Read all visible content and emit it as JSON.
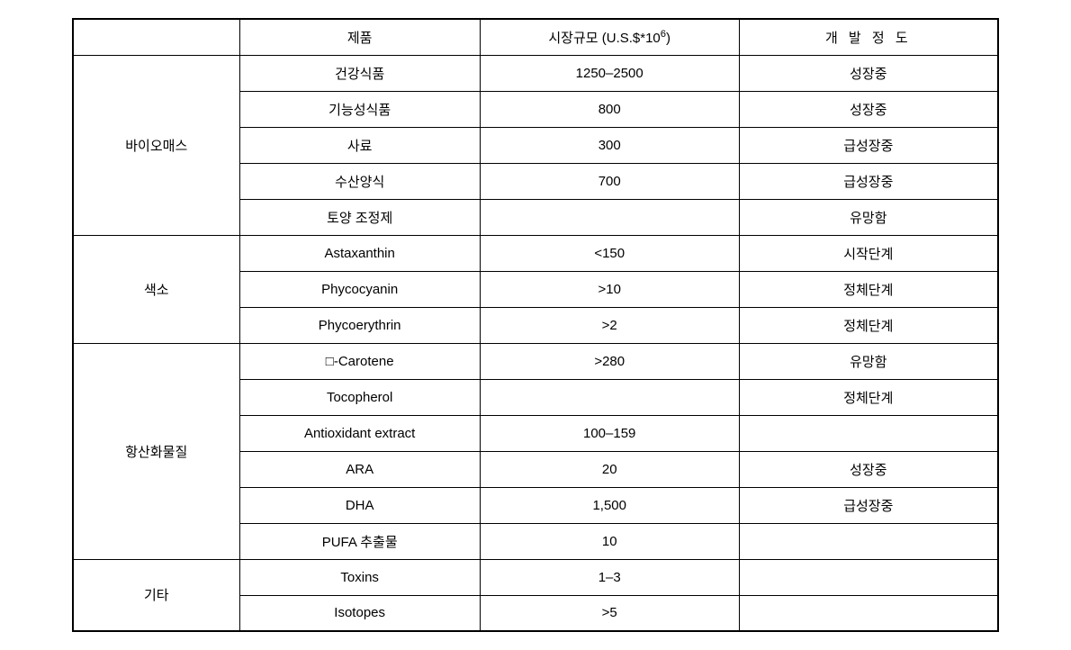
{
  "headers": {
    "category": "",
    "product": "제품",
    "market_prefix": "시장규모 (U.S.$*10",
    "market_suffix": ")",
    "market_exp": "6",
    "development": "개 발 정 도"
  },
  "sections": [
    {
      "category": "바이오매스",
      "rows": [
        {
          "product": "건강식품",
          "market": "1250–2500",
          "dev": "성장중"
        },
        {
          "product": "기능성식품",
          "market": "800",
          "dev": "성장중"
        },
        {
          "product": "사료",
          "market": "300",
          "dev": "급성장중"
        },
        {
          "product": "수산양식",
          "market": "700",
          "dev": "급성장중"
        },
        {
          "product": "토양 조정제",
          "market": "",
          "dev": "유망함"
        }
      ]
    },
    {
      "category": "색소",
      "rows": [
        {
          "product": "Astaxanthin",
          "market": "<150",
          "dev": "시작단계"
        },
        {
          "product": "Phycocyanin",
          "market": ">10",
          "dev": "정체단계"
        },
        {
          "product": "Phycoerythrin",
          "market": ">2",
          "dev": "정체단계"
        }
      ]
    },
    {
      "category": "항산화물질",
      "rows": [
        {
          "product": "□-Carotene",
          "market": ">280",
          "dev": "유망함"
        },
        {
          "product": "Tocopherol",
          "market": "",
          "dev": "정체단계"
        },
        {
          "product": "Antioxidant extract",
          "market": "100–159",
          "dev": ""
        },
        {
          "product": "ARA",
          "market": "20",
          "dev": "성장중"
        },
        {
          "product": "DHA",
          "market": "1,500",
          "dev": "급성장중"
        },
        {
          "product": "PUFA 추출물",
          "market": "10",
          "dev": ""
        }
      ]
    },
    {
      "category": "기타",
      "rows": [
        {
          "product": "Toxins",
          "market": "1–3",
          "dev": ""
        },
        {
          "product": "Isotopes",
          "market": ">5",
          "dev": ""
        }
      ]
    }
  ]
}
